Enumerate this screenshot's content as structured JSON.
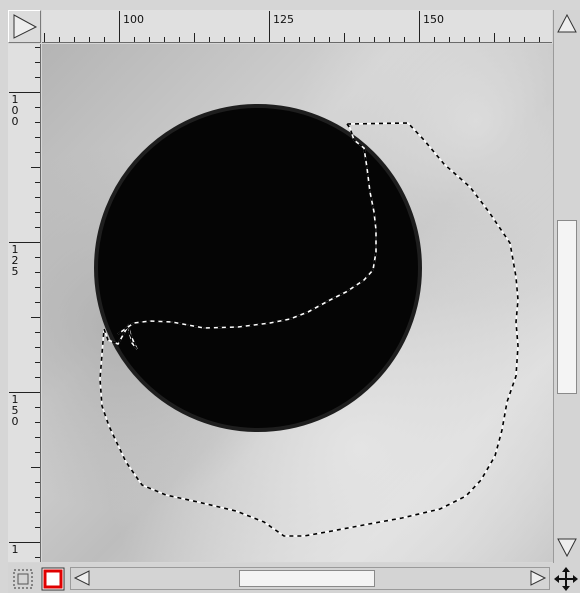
{
  "ruler": {
    "horizontal_labels": [
      "100",
      "125",
      "150"
    ],
    "vertical_labels": [
      {
        "digits": [
          "1",
          "0",
          "0"
        ]
      },
      {
        "digits": [
          "1",
          "2",
          "5"
        ]
      },
      {
        "digits": [
          "1",
          "5",
          "0"
        ]
      },
      {
        "digits": [
          "1"
        ]
      }
    ]
  },
  "icons": {
    "corner": "ruler-corner-triangle-icon",
    "scroll_up": "up-arrow-icon",
    "scroll_down": "down-arrow-icon",
    "scroll_left": "left-arrow-icon",
    "scroll_right": "right-arrow-icon",
    "quick_mask": "quick-mask-icon",
    "navigate": "move-cross-icon"
  },
  "colors": {
    "ruler_bg": "#e0e0e0",
    "canvas_bg": "#c8c8c8",
    "circle": "#000000",
    "quick_mask_accent": "#e00000"
  }
}
